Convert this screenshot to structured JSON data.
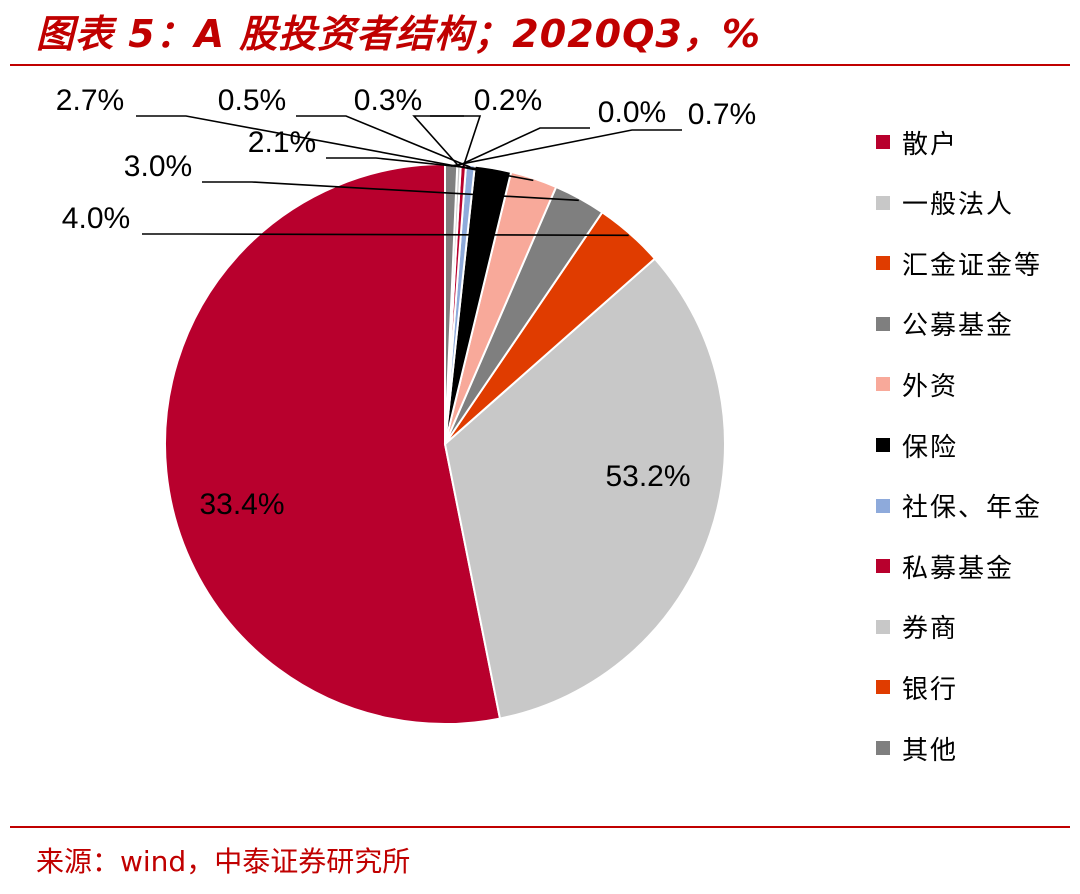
{
  "header": {
    "title": "图表 5：A 股投资者结构；2020Q3，%"
  },
  "footer": {
    "source": "来源：wind，中泰证券研究所"
  },
  "colors": {
    "accent": "#c00000"
  },
  "chart_data": {
    "type": "pie",
    "title": "",
    "legend_position": "right",
    "slices": [
      {
        "name": "散户",
        "value": 53.2,
        "label": "53.2%",
        "color": "#b8002d",
        "label_position": "inside"
      },
      {
        "name": "一般法人",
        "value": 33.4,
        "label": "33.4%",
        "color": "#c8c8c8",
        "label_position": "inside"
      },
      {
        "name": "汇金证金等",
        "value": 4.0,
        "label": "4.0%",
        "color": "#e03c00",
        "label_position": "outside"
      },
      {
        "name": "公募基金",
        "value": 3.0,
        "label": "3.0%",
        "color": "#7f7f7f",
        "label_position": "outside"
      },
      {
        "name": "外资",
        "value": 2.7,
        "label": "2.7%",
        "color": "#f8a99a",
        "label_position": "outside"
      },
      {
        "name": "保险",
        "value": 2.1,
        "label": "2.1%",
        "color": "#000000",
        "label_position": "outside"
      },
      {
        "name": "社保、年金",
        "value": 0.5,
        "label": "0.5%",
        "color": "#8eaadb",
        "label_position": "outside"
      },
      {
        "name": "私募基金",
        "value": 0.3,
        "label": "0.3%",
        "color": "#b8002d",
        "label_position": "outside"
      },
      {
        "name": "券商",
        "value": 0.2,
        "label": "0.2%",
        "color": "#c8c8c8",
        "label_position": "outside"
      },
      {
        "name": "银行",
        "value": 0.0,
        "label": "0.0%",
        "color": "#e03c00",
        "label_position": "outside"
      },
      {
        "name": "其他",
        "value": 0.7,
        "label": "0.7%",
        "color": "#7f7f7f",
        "label_position": "outside"
      }
    ]
  }
}
